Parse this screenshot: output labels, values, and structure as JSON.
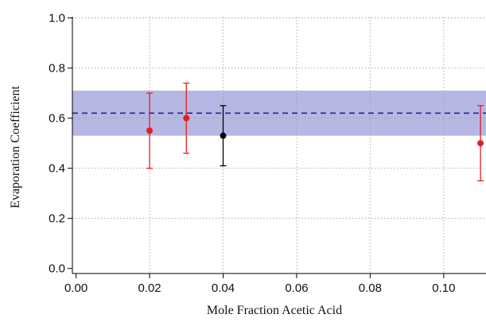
{
  "chart_data": {
    "type": "scatter",
    "xlabel": "Mole Fraction Acetic Acid",
    "ylabel": "Evaporation Coefficient",
    "xlim": [
      -0.001,
      0.1115
    ],
    "ylim": [
      -0.02,
      1.005
    ],
    "x_ticks": [
      0.0,
      0.02,
      0.04,
      0.06,
      0.08,
      0.1
    ],
    "x_tick_labels": [
      "0.00",
      "0.02",
      "0.04",
      "0.06",
      "0.08",
      "0.10"
    ],
    "y_ticks": [
      0.0,
      0.2,
      0.4,
      0.6,
      0.8,
      1.0
    ],
    "y_tick_labels": [
      "0.0",
      "0.2",
      "0.4",
      "0.6",
      "0.8",
      "1.0"
    ],
    "grid": true,
    "band": {
      "y_low": 0.53,
      "y_high": 0.71,
      "color": "#b7b7e3"
    },
    "reference_line": {
      "y": 0.62,
      "style": "dashed",
      "color": "#1f2a8c"
    },
    "series": [
      {
        "color": "#e02020",
        "points": [
          {
            "x": 0.02,
            "y": 0.55,
            "y_low": 0.4,
            "y_high": 0.7
          },
          {
            "x": 0.03,
            "y": 0.6,
            "y_low": 0.46,
            "y_high": 0.74
          },
          {
            "x": 0.11,
            "y": 0.5,
            "y_low": 0.35,
            "y_high": 0.65
          }
        ]
      },
      {
        "color": "#000000",
        "points": [
          {
            "x": 0.04,
            "y": 0.53,
            "y_low": 0.41,
            "y_high": 0.65
          }
        ]
      }
    ]
  }
}
